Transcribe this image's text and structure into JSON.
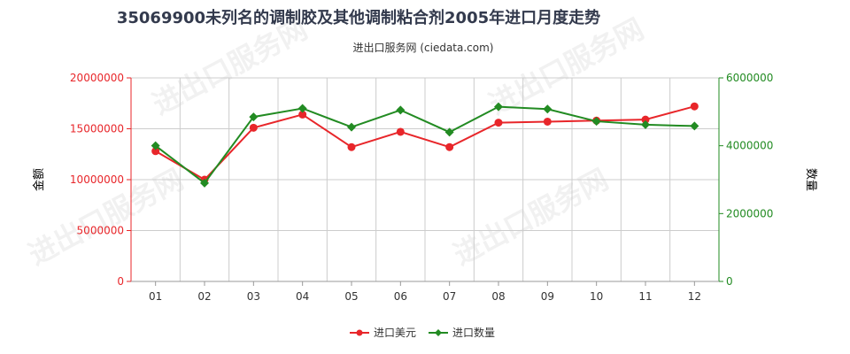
{
  "chart_data": {
    "type": "line",
    "title": "35069900未列名的调制胶及其他调制粘合剂2005年进口月度走势",
    "subtitle": "进出口服务网 (ciedata.com)",
    "categories": [
      "01",
      "02",
      "03",
      "04",
      "05",
      "06",
      "07",
      "08",
      "09",
      "10",
      "11",
      "12"
    ],
    "y_left": {
      "label": "金额",
      "ticks": [
        "0",
        "5000000",
        "10000000",
        "15000000",
        "20000000"
      ],
      "ylim": [
        0,
        20000000
      ],
      "color": "#e8262a"
    },
    "y_right": {
      "label": "数量",
      "ticks": [
        "0",
        "2000000",
        "4000000",
        "6000000"
      ],
      "ylim": [
        0,
        6000000
      ],
      "color": "#228b22"
    },
    "series": [
      {
        "name": "进口美元",
        "axis": "left",
        "color": "#e8262a",
        "marker": "circle",
        "values": [
          12800000,
          10000000,
          15100000,
          16400000,
          13200000,
          14700000,
          13200000,
          15600000,
          15700000,
          15800000,
          15900000,
          17200000
        ]
      },
      {
        "name": "进口数量",
        "axis": "right",
        "color": "#228b22",
        "marker": "diamond",
        "values": [
          4000000,
          2900000,
          4850000,
          5100000,
          4550000,
          5050000,
          4400000,
          5150000,
          5080000,
          4720000,
          4620000,
          4580000
        ]
      }
    ],
    "grid": true,
    "legend_position": "bottom-center",
    "watermark": "进出口服务网"
  }
}
